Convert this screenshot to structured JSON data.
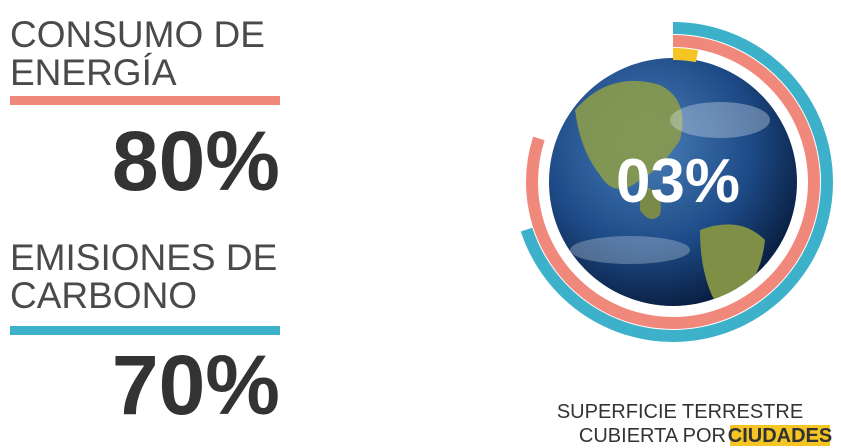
{
  "chart_data": {
    "type": "radial",
    "rlim": [
      0,
      100
    ],
    "series": [
      {
        "name_lines": [
          "CONSUMO DE",
          "ENERGÍA"
        ],
        "color": "#f0887c",
        "values": [
          80
        ],
        "value_labels": [
          "80%"
        ]
      },
      {
        "name_lines": [
          "EMISIONES DE",
          "CARBONO"
        ],
        "color": "#3cb1c9",
        "values": [
          70
        ],
        "value_labels": [
          "70%"
        ]
      }
    ],
    "center": {
      "values": [
        3
      ],
      "value_labels": [
        "03%"
      ],
      "color": "#f5c524"
    },
    "caption_lines": [
      "SUPERFICIE TERRESTRE",
      "CUBIERTA POR"
    ],
    "caption_highlight": "CIUDADES"
  }
}
